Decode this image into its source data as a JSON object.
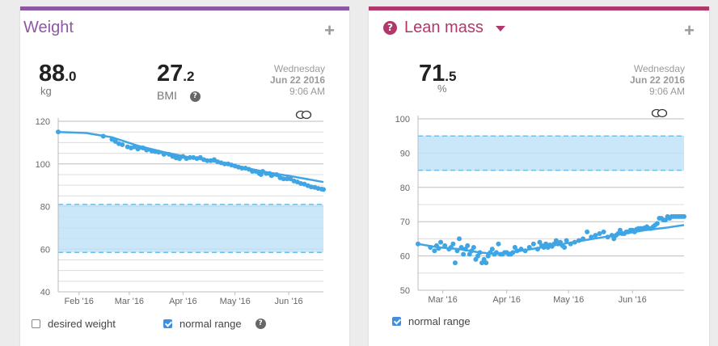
{
  "colors": {
    "weight_accent": "#8e57a3",
    "lean_accent": "#b1386a",
    "series": "#3fa5e4",
    "normal_range_fill": "#bfe3f7",
    "normal_range_border": "#6ec0ea"
  },
  "weight": {
    "title": "Weight",
    "add_icon": "plus-icon",
    "main_int": "88",
    "main_dec": ".0",
    "main_unit": "kg",
    "bmi_int": "27",
    "bmi_dec": ".2",
    "bmi_label": "BMI",
    "date_line1": "Wednesday",
    "date_line2": "Jun 22 2016",
    "date_line3": "9:06 AM",
    "legend_desired": "desired weight",
    "legend_normal": "normal range",
    "desired_checked": false,
    "normal_checked": true
  },
  "lean": {
    "title": "Lean mass",
    "add_icon": "plus-icon",
    "main_int": "71",
    "main_dec": ".5",
    "main_unit": "%",
    "date_line1": "Wednesday",
    "date_line2": "Jun 22 2016",
    "date_line3": "9:06 AM",
    "legend_normal": "normal range",
    "normal_checked": true
  },
  "chart_data": [
    {
      "type": "scatter",
      "title": "Weight",
      "ylim": [
        40,
        120
      ],
      "yticks": [
        40,
        60,
        80,
        100,
        120
      ],
      "xlim": [
        -6,
        147
      ],
      "xticks": [
        {
          "pos": 6,
          "label": "Feb '16"
        },
        {
          "pos": 35,
          "label": "Mar '16"
        },
        {
          "pos": 66,
          "label": "Apr '16"
        },
        {
          "pos": 96,
          "label": "May '16"
        },
        {
          "pos": 127,
          "label": "Jun '16"
        }
      ],
      "normal_range": [
        58.5,
        81
      ],
      "grid": true,
      "points": [
        [
          -6,
          115
        ],
        [
          20,
          113
        ],
        [
          25,
          111.5
        ],
        [
          27,
          110.5
        ],
        [
          29,
          109.5
        ],
        [
          31,
          109
        ],
        [
          34,
          108
        ],
        [
          36,
          107.5
        ],
        [
          38,
          108
        ],
        [
          40,
          107
        ],
        [
          43,
          107.5
        ],
        [
          45,
          106.5
        ],
        [
          48,
          106
        ],
        [
          50,
          105.8
        ],
        [
          52,
          105.5
        ],
        [
          55,
          104.5
        ],
        [
          58,
          104.5
        ],
        [
          60,
          103.5
        ],
        [
          62,
          102.8
        ],
        [
          64,
          102.5
        ],
        [
          66,
          103.5
        ],
        [
          68,
          102.5
        ],
        [
          70,
          103
        ],
        [
          72,
          103
        ],
        [
          74,
          102.5
        ],
        [
          76,
          103
        ],
        [
          78,
          102
        ],
        [
          80,
          101.5
        ],
        [
          82,
          101.5
        ],
        [
          84,
          102
        ],
        [
          86,
          101
        ],
        [
          88,
          100.5
        ],
        [
          90,
          100
        ],
        [
          92,
          100
        ],
        [
          94,
          99.5
        ],
        [
          96,
          99
        ],
        [
          98,
          98.5
        ],
        [
          100,
          98
        ],
        [
          102,
          98
        ],
        [
          104,
          97.5
        ],
        [
          106,
          96.5
        ],
        [
          108,
          96.5
        ],
        [
          110,
          95.5
        ],
        [
          111,
          95
        ],
        [
          112,
          96.5
        ],
        [
          114,
          95.5
        ],
        [
          116,
          95.5
        ],
        [
          117,
          94.5
        ],
        [
          118,
          95
        ],
        [
          120,
          95
        ],
        [
          122,
          93.5
        ],
        [
          124,
          93
        ],
        [
          126,
          93
        ],
        [
          128,
          93
        ],
        [
          130,
          92
        ],
        [
          132,
          91.5
        ],
        [
          134,
          90.8
        ],
        [
          136,
          90.5
        ],
        [
          138,
          89.8
        ],
        [
          140,
          89.2
        ],
        [
          142,
          89
        ],
        [
          144,
          88.5
        ],
        [
          146,
          88.2
        ],
        [
          147,
          88
        ]
      ],
      "trend": [
        [
          -6,
          115
        ],
        [
          10,
          114.5
        ],
        [
          25,
          112.5
        ],
        [
          40,
          108.5
        ],
        [
          55,
          105.5
        ],
        [
          70,
          103
        ],
        [
          85,
          101
        ],
        [
          100,
          98.5
        ],
        [
          115,
          96
        ],
        [
          130,
          94
        ],
        [
          147,
          91.5
        ]
      ],
      "trend2": [
        [
          40,
          107.5
        ],
        [
          60,
          104
        ],
        [
          80,
          102
        ],
        [
          100,
          98.5
        ],
        [
          120,
          94.5
        ],
        [
          147,
          88
        ]
      ]
    },
    {
      "type": "scatter",
      "title": "Lean mass",
      "ylim": [
        50,
        100
      ],
      "yticks": [
        50,
        60,
        70,
        80,
        90,
        100
      ],
      "xlim": [
        0,
        129
      ],
      "xticks": [
        {
          "pos": 12,
          "label": "Mar '16"
        },
        {
          "pos": 43,
          "label": "Apr '16"
        },
        {
          "pos": 73,
          "label": "May '16"
        },
        {
          "pos": 104,
          "label": "Jun '16"
        }
      ],
      "normal_range": [
        85,
        95
      ],
      "grid": true,
      "points": [
        [
          0,
          63.5
        ],
        [
          6,
          62.5
        ],
        [
          8,
          61.5
        ],
        [
          9,
          63
        ],
        [
          10,
          62.2
        ],
        [
          11,
          64
        ],
        [
          13,
          63
        ],
        [
          15,
          62
        ],
        [
          16,
          62.5
        ],
        [
          17,
          63.5
        ],
        [
          18,
          58
        ],
        [
          19,
          61.5
        ],
        [
          20,
          65
        ],
        [
          21,
          62.5
        ],
        [
          22,
          60.5
        ],
        [
          23,
          62
        ],
        [
          24,
          63
        ],
        [
          25,
          60.5
        ],
        [
          26,
          61.5
        ],
        [
          27,
          62.5
        ],
        [
          28,
          59
        ],
        [
          29,
          60
        ],
        [
          30,
          61
        ],
        [
          31,
          58
        ],
        [
          32,
          59
        ],
        [
          33,
          58
        ],
        [
          34,
          60
        ],
        [
          35,
          61
        ],
        [
          36,
          62
        ],
        [
          37,
          60.5
        ],
        [
          38,
          61
        ],
        [
          39,
          63.5
        ],
        [
          40,
          60.5
        ],
        [
          41,
          60.5
        ],
        [
          42,
          61
        ],
        [
          43,
          61
        ],
        [
          44,
          60.5
        ],
        [
          45,
          60.5
        ],
        [
          46,
          61
        ],
        [
          47,
          62.5
        ],
        [
          48,
          61.5
        ],
        [
          50,
          62
        ],
        [
          52,
          61.5
        ],
        [
          54,
          62.5
        ],
        [
          56,
          63.5
        ],
        [
          58,
          62
        ],
        [
          59,
          64
        ],
        [
          60,
          63
        ],
        [
          61,
          62.5
        ],
        [
          62,
          63.5
        ],
        [
          63,
          62.5
        ],
        [
          64,
          63.2
        ],
        [
          65,
          62.8
        ],
        [
          66,
          63.5
        ],
        [
          67,
          64.5
        ],
        [
          68,
          63.5
        ],
        [
          69,
          64
        ],
        [
          70,
          63
        ],
        [
          71,
          62.5
        ],
        [
          72,
          64.5
        ],
        [
          74,
          63.5
        ],
        [
          76,
          64
        ],
        [
          78,
          64.5
        ],
        [
          80,
          65
        ],
        [
          82,
          67
        ],
        [
          84,
          65.5
        ],
        [
          86,
          66
        ],
        [
          88,
          66.5
        ],
        [
          90,
          67
        ],
        [
          92,
          65.5
        ],
        [
          94,
          66
        ],
        [
          95,
          65
        ],
        [
          96,
          66
        ],
        [
          97,
          66.5
        ],
        [
          98,
          67.5
        ],
        [
          99,
          66.5
        ],
        [
          100,
          66.5
        ],
        [
          101,
          67
        ],
        [
          102,
          67
        ],
        [
          103,
          67.5
        ],
        [
          104,
          67.5
        ],
        [
          105,
          67
        ],
        [
          106,
          67.8
        ],
        [
          107,
          68
        ],
        [
          108,
          68
        ],
        [
          109,
          68
        ],
        [
          110,
          68.2
        ],
        [
          111,
          68.5
        ],
        [
          112,
          68
        ],
        [
          113,
          68
        ],
        [
          114,
          68.5
        ],
        [
          115,
          69
        ],
        [
          116,
          69.5
        ],
        [
          117,
          71
        ],
        [
          118,
          71
        ],
        [
          119,
          70.5
        ],
        [
          120,
          70.5
        ],
        [
          121,
          71.5
        ],
        [
          122,
          71
        ],
        [
          123,
          71.5
        ],
        [
          124,
          71.5
        ],
        [
          125,
          71.5
        ],
        [
          126,
          71.5
        ],
        [
          127,
          71.5
        ],
        [
          128,
          71.5
        ],
        [
          129,
          71.5
        ]
      ],
      "trend": [
        [
          0,
          63.5
        ],
        [
          10,
          62.5
        ],
        [
          20,
          62
        ],
        [
          30,
          61
        ],
        [
          40,
          60.5
        ],
        [
          50,
          61.5
        ],
        [
          60,
          62.5
        ],
        [
          70,
          63.5
        ],
        [
          80,
          64.5
        ],
        [
          90,
          65.5
        ],
        [
          100,
          66.5
        ],
        [
          110,
          67.5
        ],
        [
          120,
          68.2
        ],
        [
          129,
          69
        ]
      ]
    }
  ]
}
